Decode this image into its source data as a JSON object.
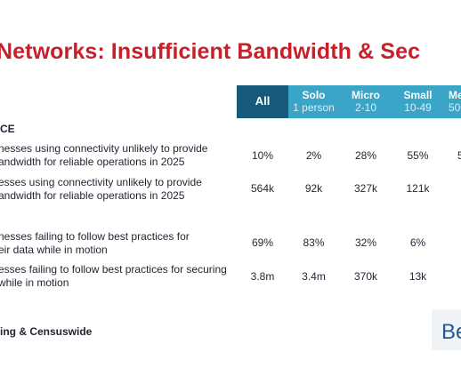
{
  "title": "Networks: Insufficient Bandwidth & Sec",
  "header": [
    {
      "name": "All",
      "sub": ""
    },
    {
      "name": "Solo",
      "sub": "1 person"
    },
    {
      "name": "Micro",
      "sub": "2-10"
    },
    {
      "name": "Small",
      "sub": "10-49"
    },
    {
      "name": "Me",
      "sub": "50"
    }
  ],
  "section_label": "CE",
  "rows": [
    {
      "label": "nesses using connectivity unlikely to provide\nandwidth for reliable operations in 2025",
      "values": [
        "10%",
        "2%",
        "28%",
        "55%",
        "5"
      ]
    },
    {
      "label": "esses using connectivity unlikely to provide\nandwidth for reliable operations in 2025",
      "values": [
        "564k",
        "92k",
        "327k",
        "121k",
        ""
      ]
    },
    {
      "label": "nesses failing to follow best practices for\neir data while in motion",
      "values": [
        "69%",
        "83%",
        "32%",
        "6%",
        ""
      ]
    },
    {
      "label": "esses failing to follow best practices for securing\nwhile in motion",
      "values": [
        "3.8m",
        "3.4m",
        "370k",
        "13k",
        ""
      ]
    }
  ],
  "source": "ing & Censuswide",
  "logo_text": "Be",
  "colors": {
    "title": "#c8202a",
    "header_all": "#175a7a",
    "header_other": "#3aa5c7",
    "logo": "#1f5a93"
  }
}
